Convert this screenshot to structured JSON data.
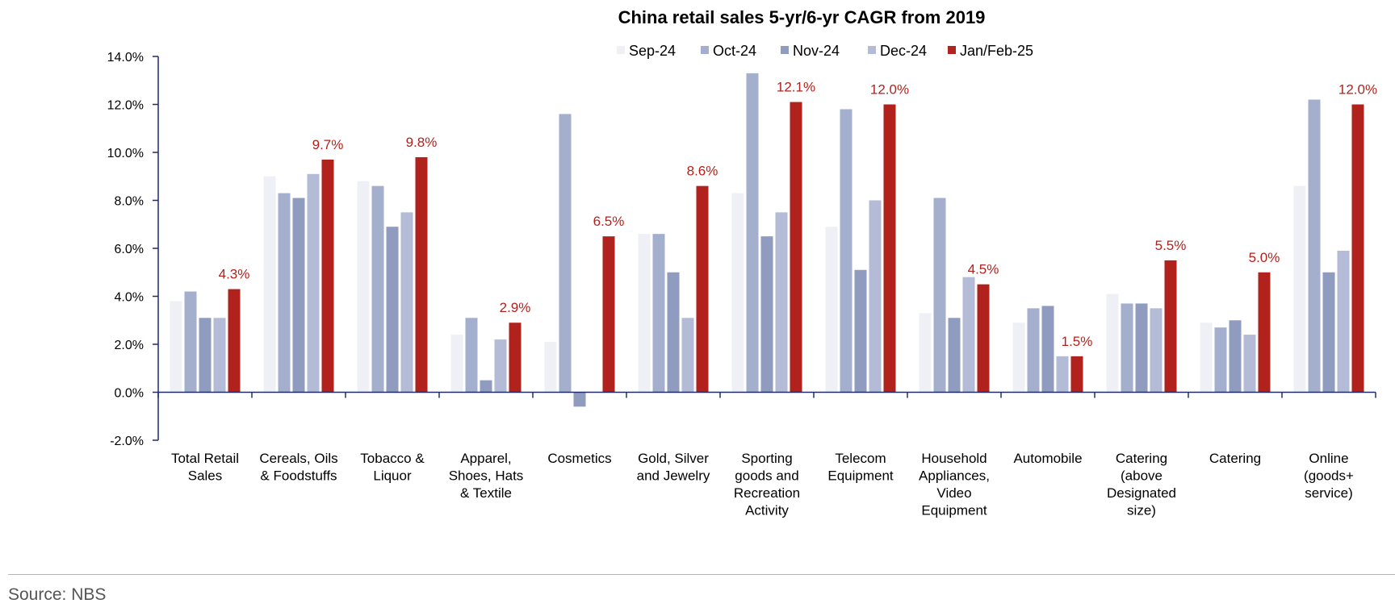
{
  "source_note": "Source: NBS",
  "chart_data": {
    "type": "bar",
    "title": "China retail sales 5-yr/6-yr CAGR from 2019",
    "xlabel": "",
    "ylabel": "",
    "ylim": [
      -0.02,
      0.14
    ],
    "yticks": [
      "-2.0%",
      "0.0%",
      "2.0%",
      "4.0%",
      "6.0%",
      "8.0%",
      "10.0%",
      "12.0%",
      "14.0%"
    ],
    "ytick_values": [
      -0.02,
      0.0,
      0.02,
      0.04,
      0.06,
      0.08,
      0.1,
      0.12,
      0.14
    ],
    "grid": false,
    "legend_position": "top-center",
    "categories": [
      [
        "Total Retail",
        "Sales"
      ],
      [
        "Cereals, Oils",
        "& Foodstuffs"
      ],
      [
        "Tobacco &",
        "Liquor"
      ],
      [
        "Apparel,",
        "Shoes, Hats",
        "& Textile"
      ],
      [
        "Cosmetics"
      ],
      [
        "Gold, Silver",
        "and Jewelry"
      ],
      [
        "Sporting",
        "goods and",
        "Recreation",
        "Activity"
      ],
      [
        "Telecom",
        "Equipment"
      ],
      [
        "Household",
        "Appliances,",
        "Video",
        "Equipment"
      ],
      [
        "Automobile"
      ],
      [
        "Catering",
        "(above",
        "Designated",
        "size)"
      ],
      [
        "Catering"
      ],
      [
        "Online",
        "(goods+",
        "service)"
      ]
    ],
    "series": [
      {
        "name": "Sep-24",
        "color": "#eef0f6",
        "values": [
          0.038,
          0.09,
          0.088,
          0.024,
          0.021,
          0.066,
          0.083,
          0.069,
          0.033,
          0.029,
          0.041,
          0.029,
          0.086
        ]
      },
      {
        "name": "Oct-24",
        "color": "#a3afcd",
        "values": [
          0.042,
          0.083,
          0.086,
          0.031,
          0.116,
          0.066,
          0.133,
          0.118,
          0.081,
          0.035,
          0.037,
          0.027,
          0.122
        ]
      },
      {
        "name": "Nov-24",
        "color": "#8f9cc0",
        "values": [
          0.031,
          0.081,
          0.069,
          0.005,
          -0.006,
          0.05,
          0.065,
          0.051,
          0.031,
          0.036,
          0.037,
          0.03,
          0.05
        ]
      },
      {
        "name": "Dec-24",
        "color": "#b3bbd6",
        "values": [
          0.031,
          0.091,
          0.075,
          0.022,
          0.0,
          0.031,
          0.075,
          0.08,
          0.048,
          0.015,
          0.035,
          0.024,
          0.059
        ]
      },
      {
        "name": "Jan/Feb-25",
        "color": "#b2221c",
        "values": [
          0.043,
          0.097,
          0.098,
          0.029,
          0.065,
          0.086,
          0.121,
          0.12,
          0.045,
          0.015,
          0.055,
          0.05,
          0.12
        ]
      }
    ],
    "data_labels": {
      "series": "Jan/Feb-25",
      "labels": [
        "4.3%",
        "9.7%",
        "9.8%",
        "2.9%",
        "6.5%",
        "8.6%",
        "12.1%",
        "12.0%",
        "4.5%",
        "1.5%",
        "5.5%",
        "5.0%",
        "12.0%"
      ]
    }
  }
}
